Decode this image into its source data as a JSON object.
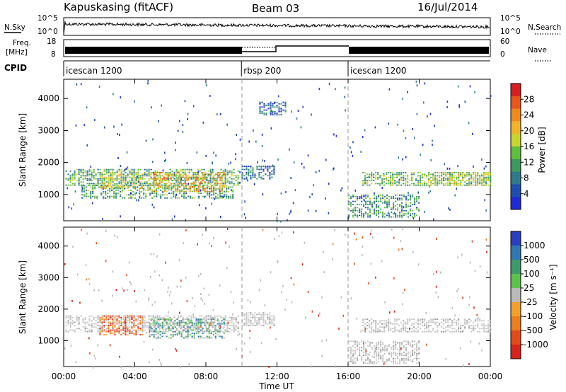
{
  "header": {
    "station": "Kapuskasing (fitACF)",
    "beam": "Beam 03",
    "date": "16/Jul/2014"
  },
  "strip_labels": {
    "nsky": "N.Sky",
    "freq_top": "Freq.",
    "freq_unit": "[MHz]",
    "cpid": "CPID",
    "nsearch": "N.Search",
    "nave": "Nave"
  },
  "strip_ticks": {
    "noise_left_top": "10^5",
    "noise_left_bottom": "10^0",
    "noise_right_top": "10^5",
    "noise_right_bottom": "10^0",
    "freq_left_top": "18",
    "freq_left_bottom": "8",
    "nave_right_top": "60",
    "nave_right_bottom": "0"
  },
  "cpid_segments": [
    {
      "label": "icescan 1200",
      "start_ut": 0,
      "end_ut": 10
    },
    {
      "label": "rbsp 200",
      "start_ut": 10,
      "end_ut": 16
    },
    {
      "label": "icescan 1200",
      "start_ut": 16,
      "end_ut": 24
    }
  ],
  "axes": {
    "xlabel": "Time UT",
    "xticks": [
      "00:00",
      "04:00",
      "08:00",
      "12:00",
      "16:00",
      "20:00",
      "00:00"
    ],
    "ylabel": "Slant Range [km]",
    "yticks": [
      "1000",
      "2000",
      "3000",
      "4000"
    ]
  },
  "power_colorbar": {
    "label": "Power [dB]",
    "ticks": [
      "4",
      "8",
      "12",
      "16",
      "20",
      "24",
      "28"
    ],
    "colors": [
      "#1f2bd9",
      "#1e4fb0",
      "#2e7a8c",
      "#3c9a5e",
      "#60bf3c",
      "#c8d52b",
      "#f2b428",
      "#f08a1c",
      "#e8561a",
      "#d81e1e"
    ]
  },
  "velocity_colorbar": {
    "label": "Velocity [m s⁻¹]",
    "ticks": [
      "1000",
      "500",
      "100",
      "25",
      "-25",
      "-100",
      "-500",
      "-1000"
    ],
    "colors": [
      "#2b3fc4",
      "#2f79b0",
      "#3d9a6a",
      "#5cc24c",
      "#b9b9b9",
      "#f1a12a",
      "#ee7d1c",
      "#e54a18",
      "#d9231c"
    ]
  },
  "chart_data": [
    {
      "type": "heatmap",
      "title": "Power",
      "x_range_ut_hours": [
        0,
        24
      ],
      "y_range_km": [
        180,
        4600
      ],
      "colorbar_label": "Power [dB]",
      "colorbar_range": [
        0,
        30
      ],
      "regions": [
        {
          "t_start": 0.1,
          "t_end": 9.8,
          "r_start": 1300,
          "r_end": 1800,
          "level": 10
        },
        {
          "t_start": 1.0,
          "t_end": 9.5,
          "r_start": 900,
          "r_end": 1300,
          "level": 9
        },
        {
          "t_start": 4.8,
          "t_end": 9.0,
          "r_start": 1100,
          "r_end": 1700,
          "level": 18
        },
        {
          "t_start": 2.0,
          "t_end": 4.5,
          "r_start": 1200,
          "r_end": 1700,
          "level": 15
        },
        {
          "t_start": 10.0,
          "t_end": 11.8,
          "r_start": 1500,
          "r_end": 1900,
          "level": 5
        },
        {
          "t_start": 11.0,
          "t_end": 12.5,
          "r_start": 3500,
          "r_end": 3900,
          "level": 4
        },
        {
          "t_start": 16.0,
          "t_end": 20.0,
          "r_start": 300,
          "r_end": 1000,
          "level": 8
        },
        {
          "t_start": 16.8,
          "t_end": 24.0,
          "r_start": 1300,
          "r_end": 1700,
          "level": 11
        },
        {
          "t_start": 20.5,
          "t_end": 24.0,
          "r_start": 1300,
          "r_end": 1700,
          "level": 14
        }
      ]
    },
    {
      "type": "heatmap",
      "title": "Velocity",
      "x_range_ut_hours": [
        0,
        24
      ],
      "y_range_km": [
        180,
        4600
      ],
      "colorbar_label": "Velocity [m s⁻¹]",
      "colorbar_ticks": [
        1000,
        500,
        100,
        25,
        -25,
        -100,
        -500,
        -1000
      ],
      "regions": [
        {
          "t_start": 0.1,
          "t_end": 9.8,
          "r_start": 1300,
          "r_end": 1800,
          "level": 0
        },
        {
          "t_start": 4.8,
          "t_end": 9.0,
          "r_start": 1100,
          "r_end": 1700,
          "level": 200
        },
        {
          "t_start": 2.0,
          "t_end": 4.5,
          "r_start": 1200,
          "r_end": 1800,
          "level": -300
        },
        {
          "t_start": 10.0,
          "t_end": 11.8,
          "r_start": 1500,
          "r_end": 1900,
          "level": 0
        },
        {
          "t_start": 16.0,
          "t_end": 20.0,
          "r_start": 300,
          "r_end": 1000,
          "level": 0
        },
        {
          "t_start": 16.8,
          "t_end": 24.0,
          "r_start": 1300,
          "r_end": 1700,
          "level": 0
        }
      ]
    }
  ]
}
